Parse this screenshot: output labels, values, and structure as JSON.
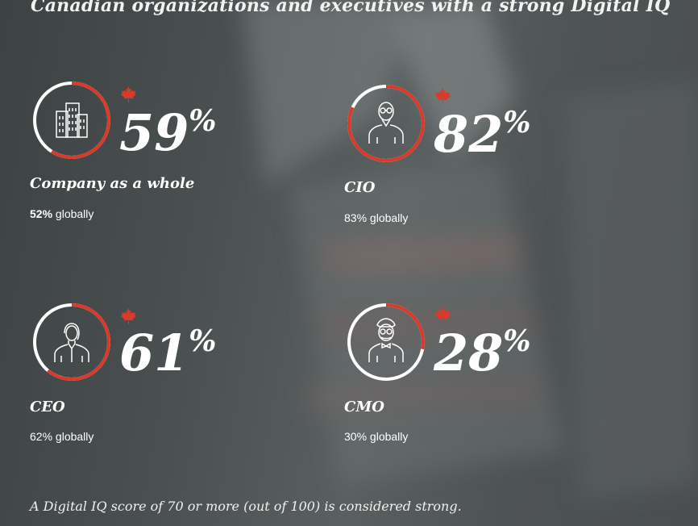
{
  "title": "Canadian organizations and executives with a strong Digital IQ",
  "accent_color": "#d93a2b",
  "stats": [
    {
      "value": "59",
      "symbol": "%",
      "label": "Company as a whole",
      "global_value": "52%",
      "global_text": " globally",
      "global_bold": true,
      "icon": "office-building-icon",
      "ring_fraction": 0.59
    },
    {
      "value": "82",
      "symbol": "%",
      "label": "CIO",
      "global_value": "83%",
      "global_text": " globally",
      "global_bold": false,
      "icon": "cio-person-icon",
      "ring_fraction": 0.82
    },
    {
      "value": "61",
      "symbol": "%",
      "label": "CEO",
      "global_value": "62%",
      "global_text": " globally",
      "global_bold": false,
      "icon": "ceo-woman-icon",
      "ring_fraction": 0.61
    },
    {
      "value": "28",
      "symbol": "%",
      "label": "CMO",
      "global_value": "30%",
      "global_text": " globally",
      "global_bold": false,
      "icon": "cmo-bowtie-person-icon",
      "ring_fraction": 0.28
    }
  ],
  "footnote": "A Digital IQ score of 70 or more (out of 100) is considered strong."
}
